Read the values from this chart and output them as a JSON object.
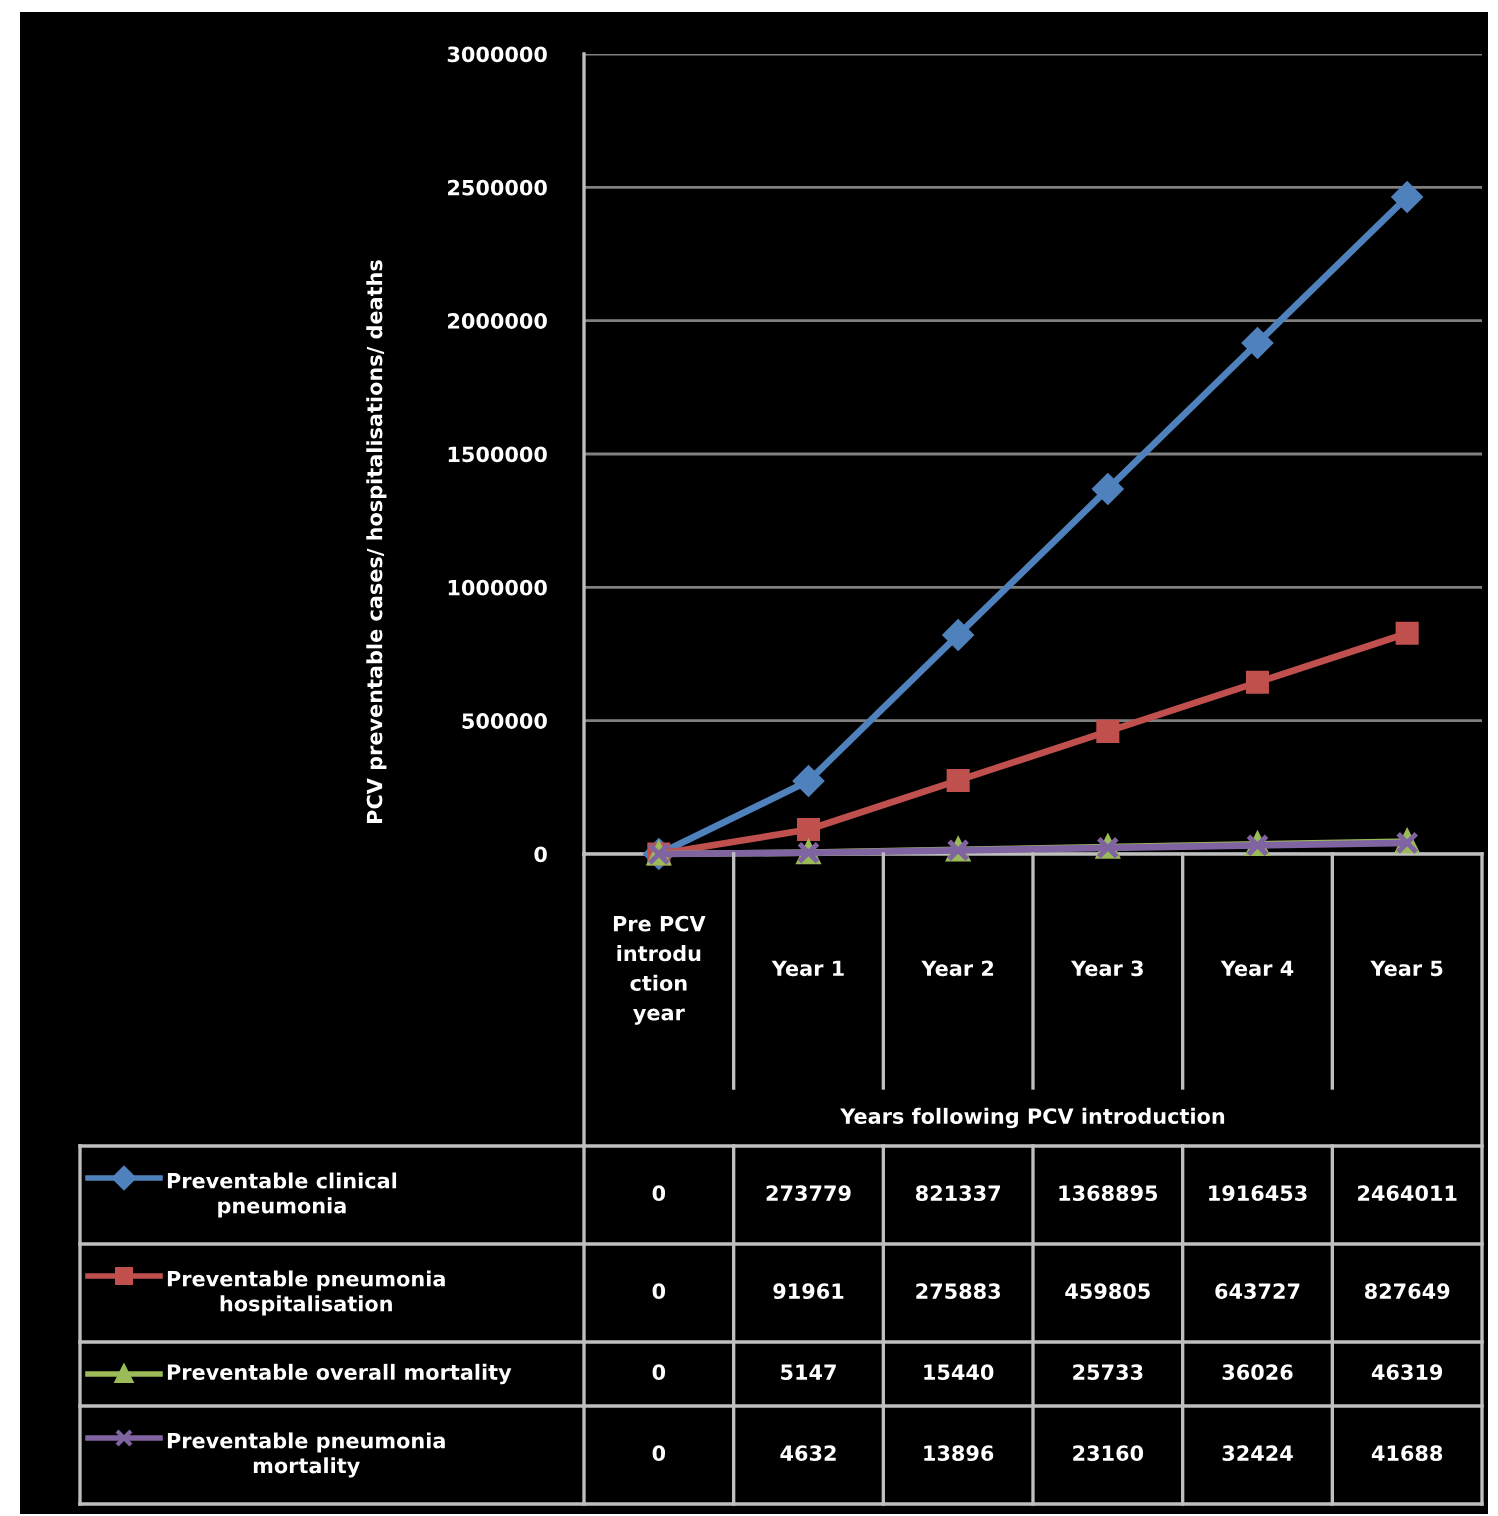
{
  "chart_data": {
    "type": "line",
    "ylabel": "PCV preventable cases/ hospitalisations/ deaths",
    "xlabel": "Years following PCV introduction",
    "categories": [
      "Pre PCV introduction year",
      "Year 1",
      "Year 2",
      "Year 3",
      "Year 4",
      "Year 5"
    ],
    "series": [
      {
        "name": "Preventable clinical pneumonia",
        "color": "#4f81bd",
        "marker": "diamond",
        "values": [
          0,
          273779,
          821337,
          1368895,
          1916453,
          2464011
        ]
      },
      {
        "name": "Preventable pneumonia hospitalisation",
        "color": "#c0504d",
        "marker": "square",
        "values": [
          0,
          91961,
          275883,
          459805,
          643727,
          827649
        ]
      },
      {
        "name": "Preventable overall mortality",
        "color": "#9bbb59",
        "marker": "triangle",
        "values": [
          0,
          5147,
          15440,
          25733,
          36026,
          46319
        ]
      },
      {
        "name": "Preventable pneumonia mortality",
        "color": "#8064a2",
        "marker": "cross",
        "values": [
          0,
          4632,
          13896,
          23160,
          32424,
          41688
        ]
      }
    ],
    "ylim": [
      0,
      3000000
    ],
    "yticks": [
      0,
      500000,
      1000000,
      1500000,
      2000000,
      2500000,
      3000000
    ],
    "grid": "y",
    "legend": "bottom",
    "data_labels": true
  }
}
